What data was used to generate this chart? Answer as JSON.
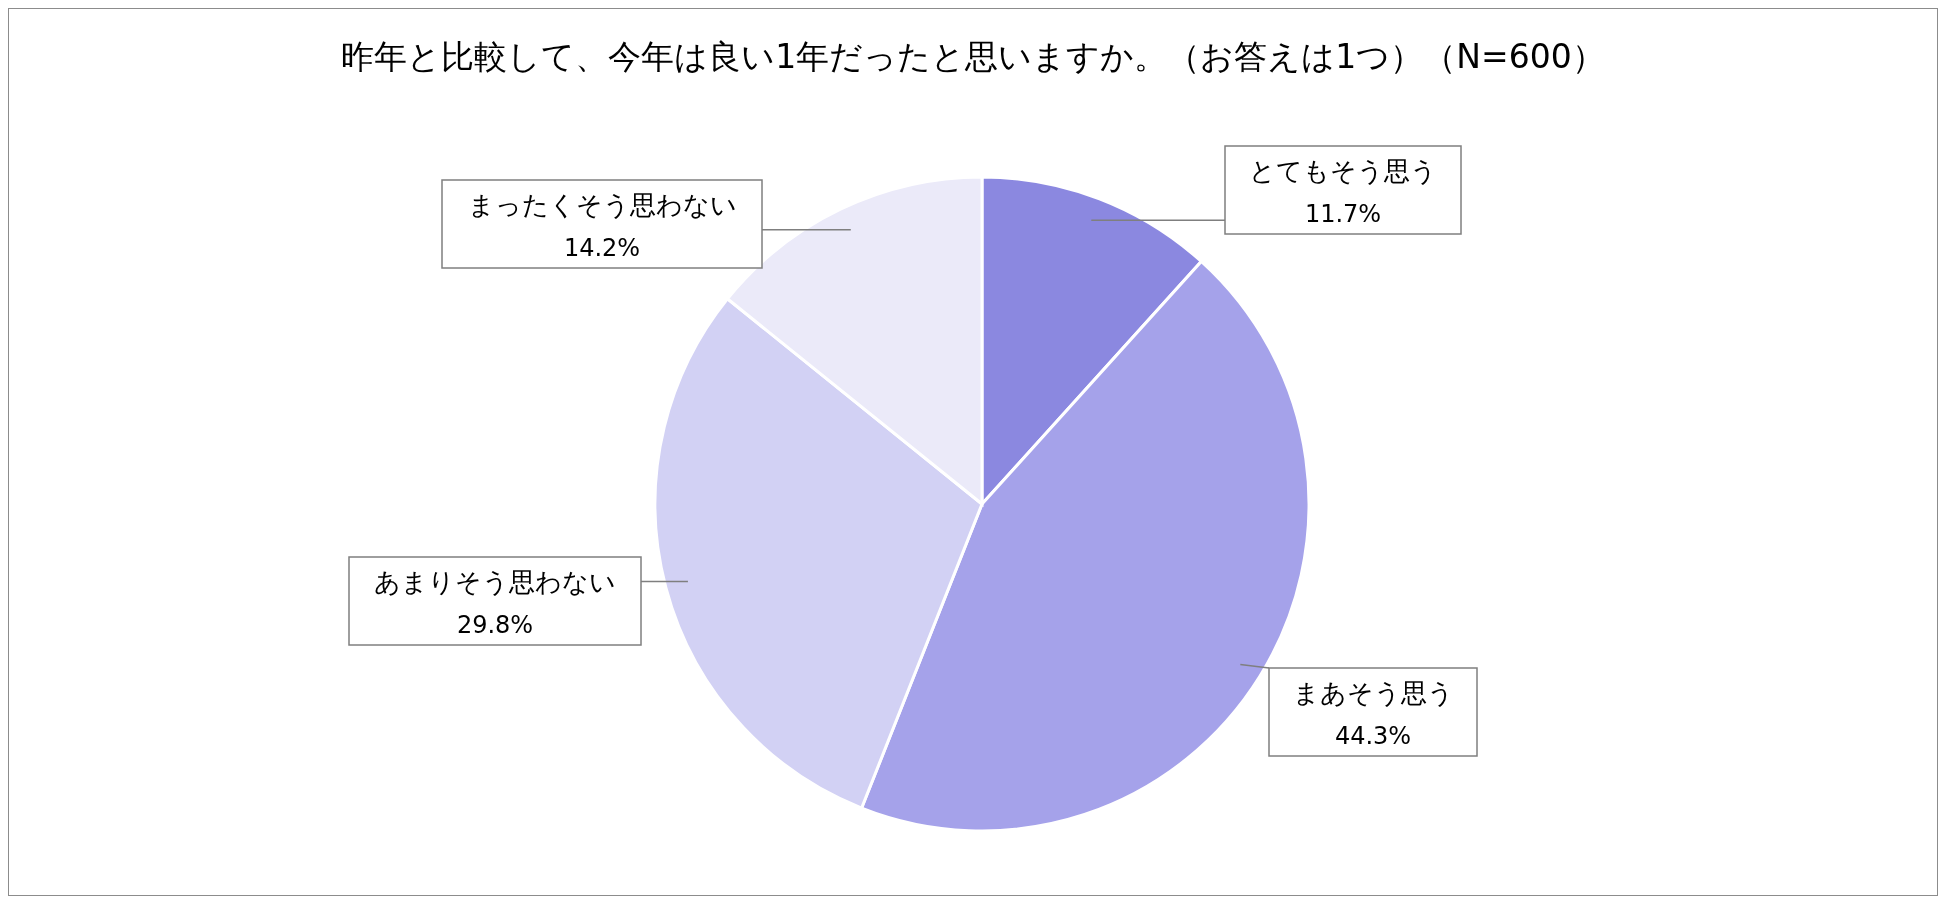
{
  "chart_data": {
    "type": "pie",
    "title": "昨年と比較して、今年は良い1年だったと思いますか。（お答えは1つ）（N=600）",
    "categories": [
      "とてもそう思う",
      "まあそう思う",
      "あまりそう思わない",
      "まったくそう思わない"
    ],
    "values": [
      11.7,
      44.3,
      29.8,
      14.2
    ],
    "colors": [
      "#8b88e0",
      "#a5a2ea",
      "#d2d1f4",
      "#ebeaf9"
    ],
    "value_labels": [
      "11.7%",
      "44.3%",
      "29.8%",
      "14.2%"
    ]
  }
}
